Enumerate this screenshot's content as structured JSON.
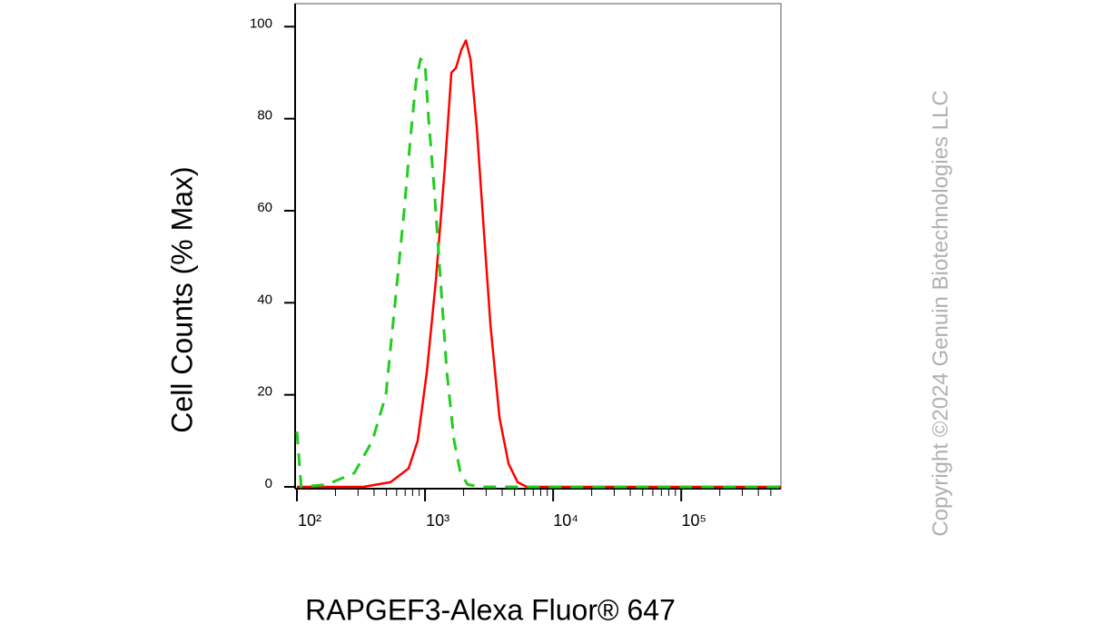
{
  "chart_data": {
    "type": "line",
    "xlabel": "RAPGEF3-Alexa Fluor® 647",
    "ylabel": "Cell Counts (% Max)",
    "watermark": "Copyright ©2024 Genuin Biotechnologies LLC",
    "xscale": "log",
    "xlim": [
      100,
      600000
    ],
    "ylim": [
      0,
      105
    ],
    "xticks": [
      {
        "value": 100,
        "label": "10²"
      },
      {
        "value": 1000,
        "label": "10³"
      },
      {
        "value": 10000,
        "label": "10⁴"
      },
      {
        "value": 100000,
        "label": "10⁵"
      }
    ],
    "xminorticks": [
      200,
      300,
      400,
      500,
      600,
      700,
      800,
      900,
      2000,
      3000,
      4000,
      5000,
      6000,
      7000,
      8000,
      9000,
      20000,
      30000,
      40000,
      50000,
      60000,
      70000,
      80000,
      90000,
      200000,
      300000,
      400000,
      500000
    ],
    "yticks": [
      0,
      20,
      40,
      60,
      80,
      100
    ],
    "series": [
      {
        "color": "#ff0000",
        "dash": false,
        "x": [
          100,
          330,
          537,
          745,
          877,
          1033,
          1216,
          1432,
          1607,
          1743,
          1922,
          2086,
          2264,
          2537,
          2891,
          3243,
          3817,
          4490,
          5286,
          6217,
          600000
        ],
        "values": [
          0,
          0,
          1,
          4,
          10,
          25,
          45,
          70,
          90,
          91,
          95,
          97,
          93,
          78,
          55,
          35,
          15,
          5,
          1,
          0,
          0
        ]
      },
      {
        "color": "#22cc22",
        "dash": true,
        "x": [
          100,
          108,
          171,
          280,
          388,
          495,
          584,
          687,
          771,
          850,
          922,
          1000,
          1067,
          1178,
          1321,
          1481,
          1687,
          1892,
          2154,
          2754,
          600000
        ],
        "values": [
          12,
          0,
          0.5,
          3,
          10,
          20,
          40,
          60,
          76,
          88,
          93,
          92,
          80,
          65,
          45,
          25,
          10,
          3,
          0.5,
          0,
          0
        ]
      }
    ]
  }
}
